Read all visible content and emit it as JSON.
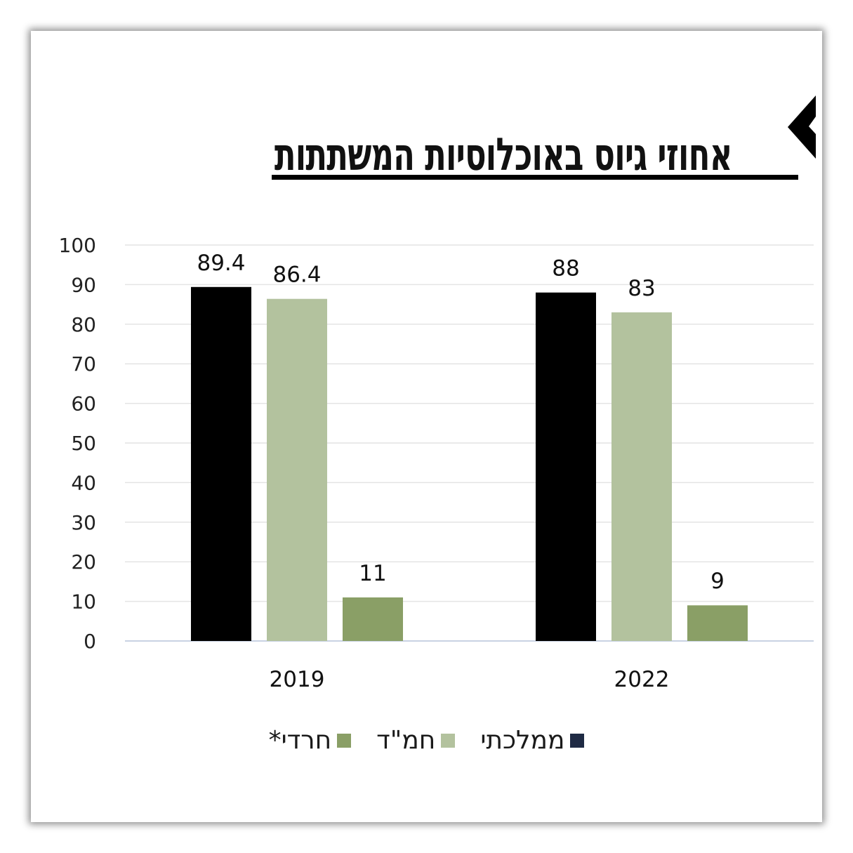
{
  "title": "אחוזי גיוס באוכלוסיות המשתתות",
  "chart_data": {
    "type": "bar",
    "categories": [
      "2019",
      "2022"
    ],
    "series": [
      {
        "name": "ממלכתי",
        "color": "#000000",
        "legend_color": "#1f2a44",
        "values": [
          89.4,
          88
        ]
      },
      {
        "name": "חמ\"ד",
        "color": "#b3c29e",
        "legend_color": "#b3c29e",
        "values": [
          86.4,
          83
        ]
      },
      {
        "name": "חרדי*",
        "color": "#8a9f66",
        "legend_color": "#8a9f66",
        "values": [
          11,
          9
        ]
      }
    ],
    "data_labels": [
      [
        "89.4",
        "88"
      ],
      [
        "86.4",
        "83"
      ],
      [
        "11",
        "9"
      ]
    ],
    "ylim": [
      0,
      100
    ],
    "yticks": [
      "0",
      "10",
      "20",
      "30",
      "40",
      "50",
      "60",
      "70",
      "80",
      "90",
      "100"
    ],
    "grid": true,
    "legend_position": "bottom"
  }
}
